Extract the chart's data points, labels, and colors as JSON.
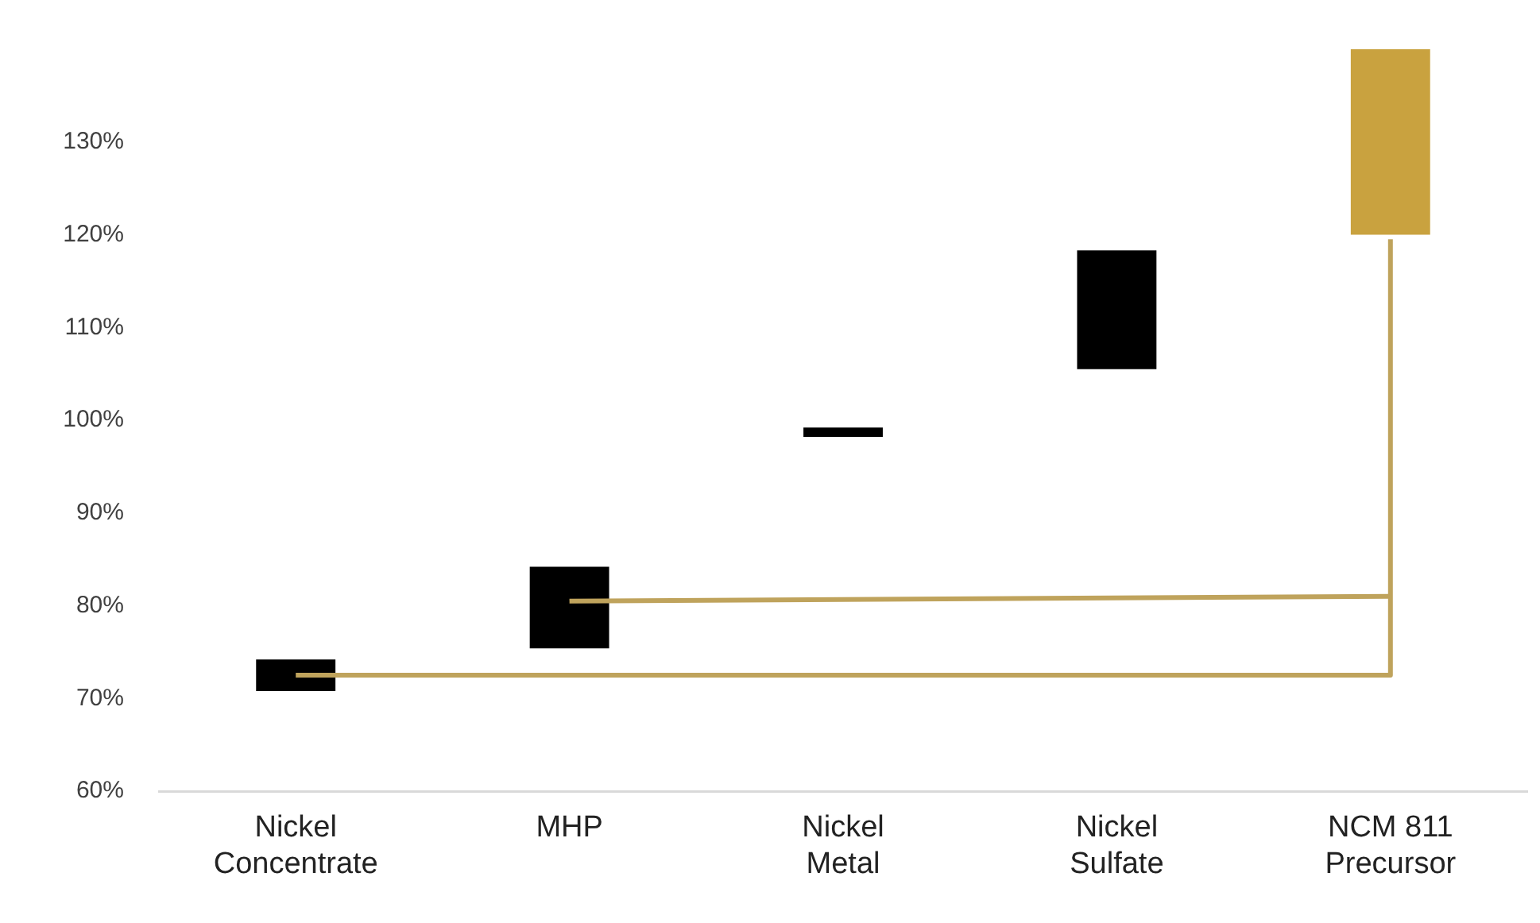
{
  "chart_data": {
    "type": "bar",
    "categories": [
      "Nickel Concentrate",
      "MHP",
      "Nickel Metal",
      "Nickel Sulfate",
      "NCM 811 Precursor"
    ],
    "values": [
      3.4,
      8.8,
      1,
      12.8,
      20
    ],
    "base": [
      70.8,
      75.4,
      98.2,
      105.5,
      120
    ],
    "colors": [
      "#000000",
      "#000000",
      "#000000",
      "#000000",
      "#c9a23f"
    ],
    "series": [
      {
        "type": "line",
        "color": "#bfa35c",
        "x": [
          "Nickel Concentrate",
          "NCM 811 Precursor",
          "NCM 811 Precursor"
        ],
        "values": [
          72.5,
          72.5,
          119.5
        ]
      },
      {
        "type": "line",
        "color": "#bfa35c",
        "x": [
          "MHP",
          "NCM 811 Precursor"
        ],
        "values": [
          80.5,
          81
        ]
      }
    ],
    "ylim": [
      60,
      140
    ],
    "yticks": [
      {
        "value": 60,
        "label": "60%"
      },
      {
        "value": 70,
        "label": "70%"
      },
      {
        "value": 80,
        "label": "80%"
      },
      {
        "value": 90,
        "label": "90%"
      },
      {
        "value": 100,
        "label": "100%"
      },
      {
        "value": 110,
        "label": "110%"
      },
      {
        "value": 120,
        "label": "120%"
      },
      {
        "value": 130,
        "label": "130%"
      }
    ],
    "grid": false,
    "legend": false,
    "marker": "none"
  }
}
